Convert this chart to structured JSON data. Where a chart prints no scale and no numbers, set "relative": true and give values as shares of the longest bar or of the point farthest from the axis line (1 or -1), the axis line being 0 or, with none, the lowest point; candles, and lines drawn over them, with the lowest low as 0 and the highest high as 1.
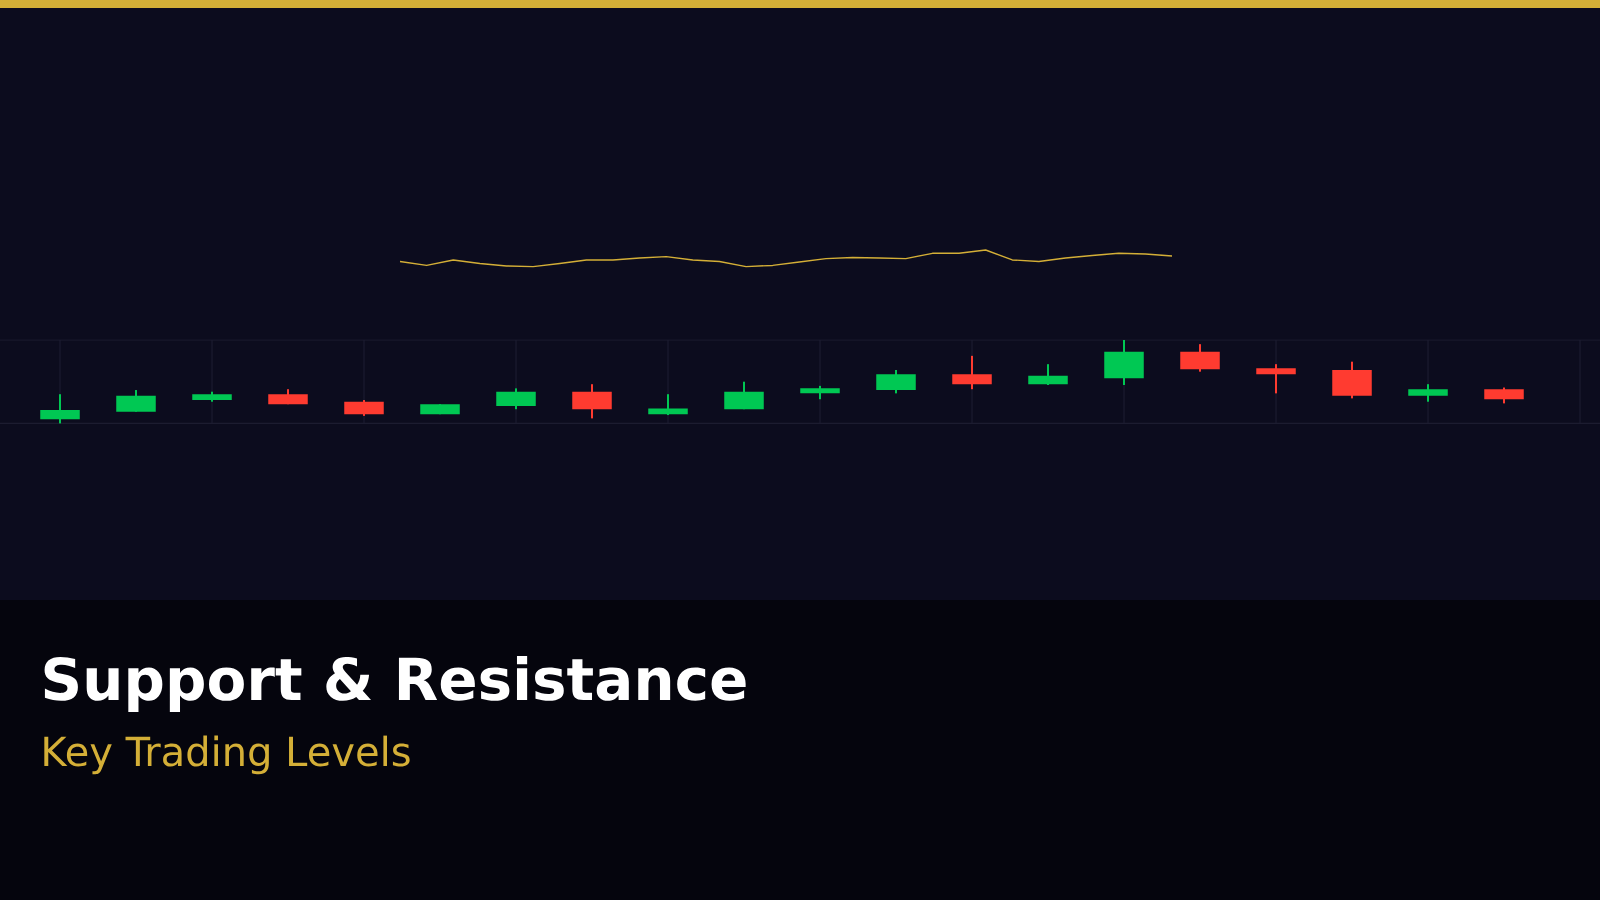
{
  "chart_data": [
    {
      "type": "candlestick",
      "title": "Support & Resistance",
      "subtitle": "Key Trading Levels",
      "relative": true,
      "grid": true,
      "categories": [
        null,
        null,
        null,
        null,
        null,
        null,
        null,
        null,
        null,
        null,
        null,
        null,
        null,
        null,
        null,
        null,
        null,
        null,
        null,
        null
      ],
      "ohlc": [
        [
          0.05,
          0.35,
          0,
          0.16
        ],
        [
          0.14,
          0.4,
          0.14,
          0.33
        ],
        [
          0.28,
          0.38,
          0.26,
          0.35
        ],
        [
          0.35,
          0.41,
          0.23,
          0.23
        ],
        [
          0.26,
          0.28,
          0.09,
          0.11
        ],
        [
          0.11,
          0.23,
          0.11,
          0.23
        ],
        [
          0.21,
          0.42,
          0.17,
          0.38
        ],
        [
          0.38,
          0.47,
          0.06,
          0.17
        ],
        [
          0.11,
          0.35,
          0.1,
          0.18
        ],
        [
          0.17,
          0.5,
          0.17,
          0.38
        ],
        [
          0.36,
          0.45,
          0.29,
          0.42
        ],
        [
          0.4,
          0.64,
          0.36,
          0.59
        ],
        [
          0.59,
          0.81,
          0.41,
          0.47
        ],
        [
          0.47,
          0.71,
          0.46,
          0.57
        ],
        [
          0.54,
          1,
          0.46,
          0.86
        ],
        [
          0.86,
          0.95,
          0.62,
          0.65
        ],
        [
          0.66,
          0.71,
          0.36,
          0.59
        ],
        [
          0.64,
          0.74,
          0.3,
          0.33
        ],
        [
          0.33,
          0.47,
          0.26,
          0.41
        ],
        [
          0.41,
          0.43,
          0.24,
          0.29
        ]
      ],
      "colors": [
        "#00c853",
        "#00c853",
        "#00c853",
        "#ff3b30",
        "#ff3b30",
        "#00c853",
        "#00c853",
        "#ff3b30",
        "#00c853",
        "#00c853",
        "#00c853",
        "#00c853",
        "#ff3b30",
        "#00c853",
        "#00c853",
        "#ff3b30",
        "#ff3b30",
        "#ff3b30",
        "#00c853",
        "#ff3b30"
      ]
    },
    {
      "type": "line",
      "relative": true,
      "color": "#d4af37",
      "categories": [
        null,
        null,
        null,
        null,
        null,
        null,
        null,
        null,
        null,
        null,
        null,
        null,
        null,
        null,
        null,
        null,
        null,
        null,
        null,
        null,
        null,
        null,
        null,
        null,
        null,
        null,
        null,
        null,
        null,
        null
      ],
      "values": [
        0.31,
        0.07,
        0.4,
        0.19,
        0.04,
        0,
        0.19,
        0.4,
        0.4,
        0.52,
        0.6,
        0.4,
        0.31,
        0,
        0.07,
        0.28,
        0.48,
        0.55,
        0.52,
        0.48,
        0.8,
        0.8,
        1,
        0.4,
        0.31,
        0.52,
        0.67,
        0.8,
        0.76,
        0.64
      ]
    }
  ]
}
